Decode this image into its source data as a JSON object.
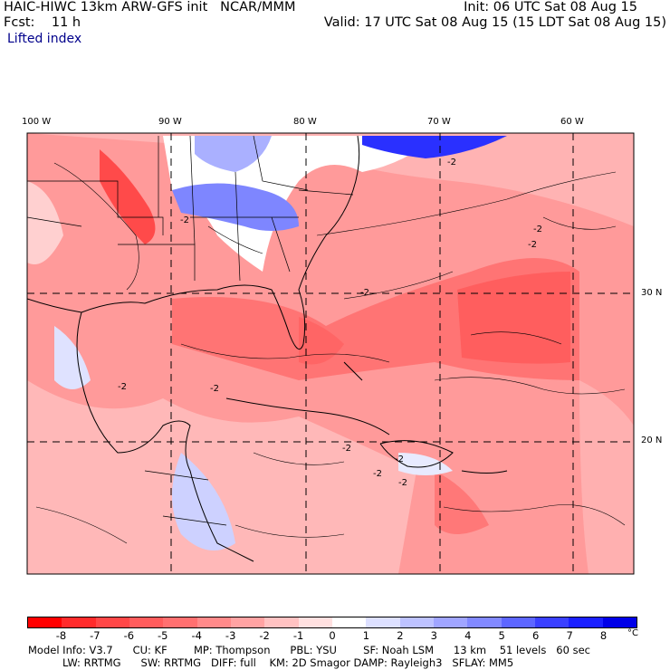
{
  "header": {
    "title_left": "HAIC-HIWC 13km ARW-GFS init   NCAR/MMM",
    "fcst": "Fcst:    11 h",
    "init": "Init: 06 UTC Sat 08 Aug 15",
    "valid": "Valid: 17 UTC Sat 08 Aug 15 (15 LDT Sat 08 Aug 15)",
    "field_name": "Lifted index"
  },
  "map": {
    "longitude_labels": [
      "100 W",
      "90 W",
      "80 W",
      "70 W",
      "60 W"
    ],
    "latitude_labels": [
      "30 N",
      "20 N"
    ],
    "contour_labels": [
      "-2",
      "-2",
      "-2",
      "-2",
      "-2",
      "-2",
      "-2",
      "-2",
      "-2",
      "-2",
      "-2"
    ]
  },
  "colorbar": {
    "ticks": [
      "-8",
      "-7",
      "-6",
      "-5",
      "-4",
      "-3",
      "-2",
      "-1",
      "0",
      "1",
      "2",
      "3",
      "4",
      "5",
      "6",
      "7",
      "8"
    ],
    "unit": "°C",
    "colors": [
      "#ff0000",
      "#ff2b2b",
      "#ff4747",
      "#ff5c5c",
      "#ff7070",
      "#ff8a8a",
      "#ffa3a3",
      "#ffc2c2",
      "#ffe0e0",
      "#ffffff",
      "#dde0ff",
      "#bdc2ff",
      "#a0a5ff",
      "#8289ff",
      "#5d66ff",
      "#3a40ff",
      "#1a20ff",
      "#0000e8"
    ]
  },
  "model_info": {
    "line1": "Model Info: V3.7      CU: KF        MP: Thompson      PBL: YSU        SF: Noah LSM      13 km    51 levels   60 sec",
    "line2": "LW: RRTMG      SW: RRTMG   DIFF: full    KM: 2D Smagor DAMP: Rayleigh3   SFLAY: MM5"
  }
}
